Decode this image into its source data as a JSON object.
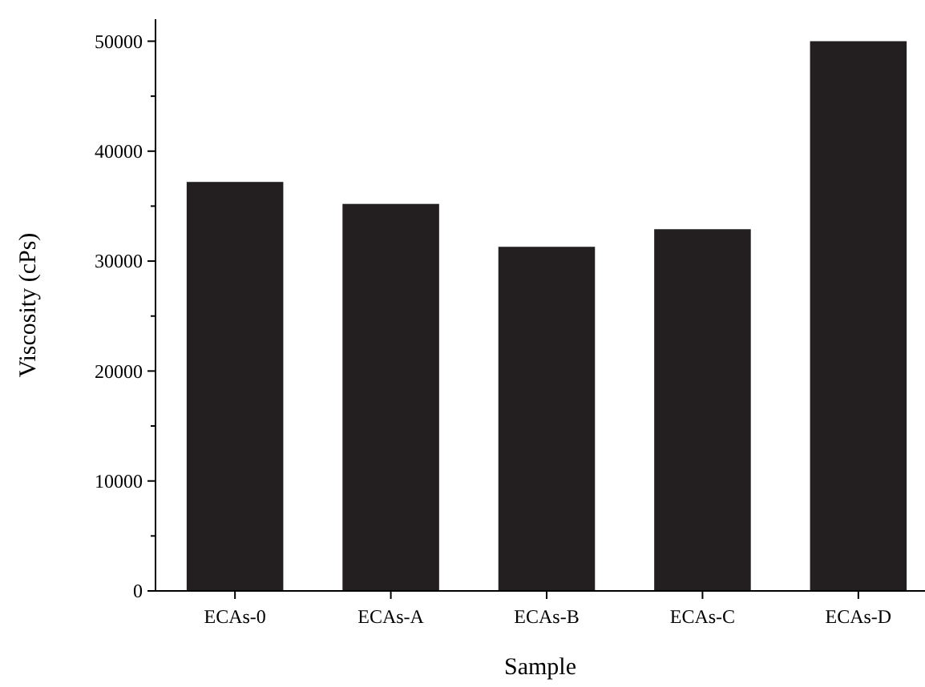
{
  "chart_data": {
    "type": "bar",
    "xlabel": "Sample",
    "ylabel": "Viscosity (cPs)",
    "categories": [
      "ECAs-0",
      "ECAs-A",
      "ECAs-B",
      "ECAs-C",
      "ECAs-D"
    ],
    "values": [
      37200,
      35200,
      31300,
      32900,
      50000
    ],
    "color": "#231f20",
    "ylim": [
      0,
      52000
    ],
    "yticks": [
      0,
      {
        "value": 5000,
        "label": null
      },
      10000,
      {
        "value": 15000,
        "label": null
      },
      20000,
      {
        "value": 25000,
        "label": null
      },
      30000,
      {
        "value": 35000,
        "label": null
      },
      40000,
      {
        "value": 45000,
        "label": null
      },
      50000
    ],
    "grid": false
  }
}
